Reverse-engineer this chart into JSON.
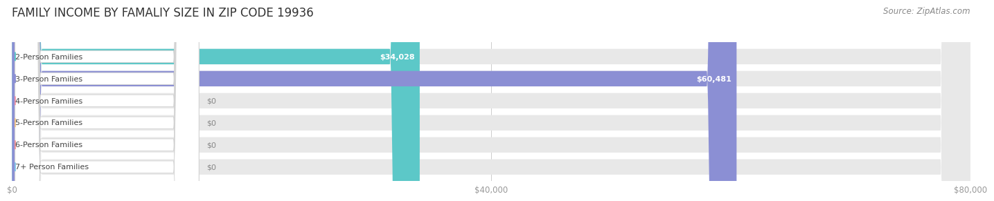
{
  "title": "FAMILY INCOME BY FAMALIY SIZE IN ZIP CODE 19936",
  "source": "Source: ZipAtlas.com",
  "categories": [
    "2-Person Families",
    "3-Person Families",
    "4-Person Families",
    "5-Person Families",
    "6-Person Families",
    "7+ Person Families"
  ],
  "values": [
    34028,
    60481,
    0,
    0,
    0,
    0
  ],
  "bar_colors": [
    "#5cc8c8",
    "#8b8fd4",
    "#f899a8",
    "#f9c98a",
    "#f89898",
    "#85c5e8"
  ],
  "value_labels": [
    "$34,028",
    "$60,481",
    "$0",
    "$0",
    "$0",
    "$0"
  ],
  "xlim": [
    0,
    80000
  ],
  "xticks": [
    0,
    40000,
    80000
  ],
  "xtick_labels": [
    "$0",
    "$40,000",
    "$80,000"
  ],
  "bg_color": "#ffffff",
  "bar_bg_color": "#e8e8e8",
  "title_fontsize": 12,
  "source_fontsize": 8.5,
  "label_fontsize": 8,
  "value_fontsize": 8
}
